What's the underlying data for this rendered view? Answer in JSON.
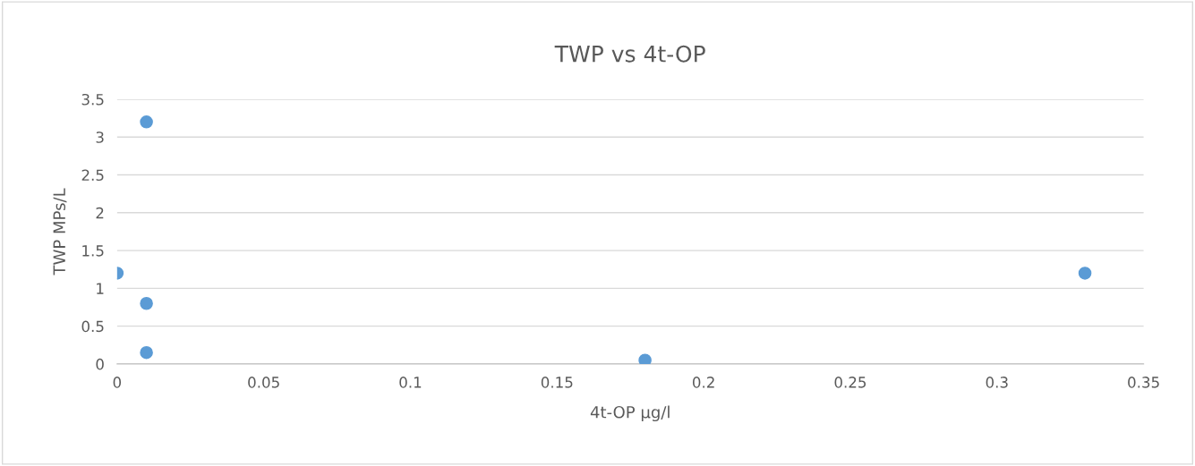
{
  "chart_data": {
    "type": "scatter",
    "title": "TWP vs 4t-OP",
    "xlabel": "4t-OP µg/l",
    "ylabel": "TWP MPs/L",
    "series": [
      {
        "color": "#5b9bd5",
        "x": [
          0,
          0.01,
          0.01,
          0.01,
          0.18,
          0.33
        ],
        "values": [
          1.2,
          3.2,
          0.8,
          0.15,
          0.05,
          1.2
        ]
      }
    ],
    "xlim": [
      0,
      0.35
    ],
    "xticks": [
      0,
      0.05,
      0.1,
      0.15,
      0.2,
      0.25,
      0.3,
      0.35
    ],
    "ylim": [
      0,
      3.5
    ],
    "yticks": [
      0,
      0.5,
      1,
      1.5,
      2,
      2.5,
      3,
      3.5
    ],
    "grid": "y",
    "marker": "circle",
    "legend": false
  }
}
